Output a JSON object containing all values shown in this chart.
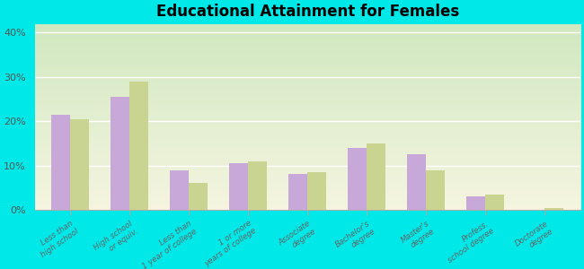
{
  "title": "Educational Attainment for Females",
  "categories": [
    "Less than\nhigh school",
    "High school\nor equiv.",
    "Less than\n1 year of college",
    "1 or more\nyears of college",
    "Associate\ndegree",
    "Bachelor's\ndegree",
    "Master's\ndegree",
    "Profess.\nschool degree",
    "Doctorate\ndegree"
  ],
  "essex": [
    21.5,
    25.5,
    9.0,
    10.5,
    8.0,
    14.0,
    12.5,
    3.0,
    0.0
  ],
  "new_york": [
    20.5,
    29.0,
    6.0,
    11.0,
    8.5,
    15.0,
    9.0,
    3.5,
    0.5
  ],
  "essex_color": "#c8a8d8",
  "new_york_color": "#c8d490",
  "background_outer": "#00e8e8",
  "yticks": [
    0,
    10,
    20,
    30,
    40
  ],
  "ylim": [
    0,
    42
  ],
  "ylabel_fmt": "{}%"
}
